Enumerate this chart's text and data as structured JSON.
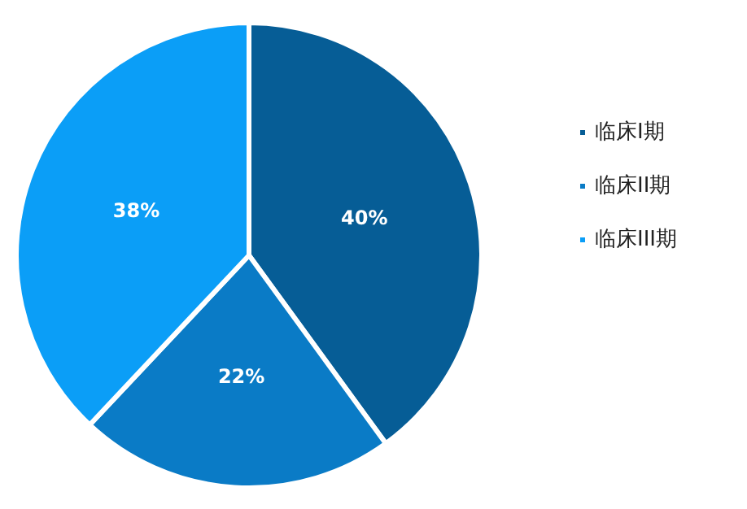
{
  "chart_data": {
    "type": "pie",
    "categories": [
      "临床I期",
      "临床II期",
      "临床III期"
    ],
    "values": [
      40,
      22,
      38
    ],
    "value_labels": [
      "40%",
      "22%",
      "38%"
    ],
    "colors": [
      "#065d96",
      "#0a7bc6",
      "#0b9ef7"
    ],
    "legend": "right"
  }
}
